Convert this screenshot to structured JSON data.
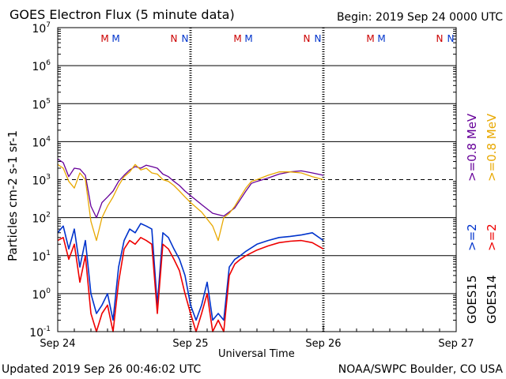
{
  "header": {
    "title": "GOES Electron Flux (5 minute data)",
    "begin": "Begin: 2019 Sep 24 0000 UTC"
  },
  "footer": {
    "updated": "Updated 2019 Sep 26 00:46:02 UTC",
    "credit": "NOAA/SWPC Boulder, CO USA"
  },
  "markers": [
    "M",
    "M",
    "N",
    "N"
  ],
  "right_labels": {
    "g15_low": ">=0.8  MeV",
    "g14_low": ">=0.8  MeV",
    "g15_high": ">=2",
    "g14_high": ">=2",
    "goes15": "GOES15",
    "goes14": "GOES14"
  },
  "colors": {
    "goes15_low": "#660099",
    "goes14_low": "#e8a800",
    "goes15_high": "#0033cc",
    "goes14_high": "#ee0000",
    "marker_m": "#cc0000",
    "marker_n": "#cc0000",
    "marker_m2": "#0033cc",
    "marker_n2": "#0033cc"
  },
  "chart_data": {
    "type": "line",
    "title": "GOES Electron Flux (5 minute data)",
    "xlabel": "Universal Time",
    "ylabel": "Particles cm-2 s-1 sr-1",
    "y_scale": "log",
    "ylim": [
      0.1,
      10000000
    ],
    "x_unit": "hours since 2019 Sep 24 0000 UTC",
    "xlim": [
      0,
      72
    ],
    "x_ticks": [
      {
        "x": 0,
        "label": "Sep 24"
      },
      {
        "x": 24,
        "label": "Sep 25"
      },
      {
        "x": 48,
        "label": "Sep 26"
      },
      {
        "x": 72,
        "label": "Sep 27"
      }
    ],
    "y_ticks": [
      {
        "y": 10000000,
        "base": "10",
        "exp": "7"
      },
      {
        "y": 1000000,
        "base": "10",
        "exp": "6"
      },
      {
        "y": 100000,
        "base": "10",
        "exp": "5"
      },
      {
        "y": 10000,
        "base": "10",
        "exp": "4"
      },
      {
        "y": 1000,
        "base": "10",
        "exp": "3"
      },
      {
        "y": 100,
        "base": "10",
        "exp": "2"
      },
      {
        "y": 10,
        "base": "10",
        "exp": "1"
      },
      {
        "y": 1,
        "base": "10",
        "exp": "0"
      },
      {
        "y": 0.1,
        "base": "10",
        "exp": "-1"
      }
    ],
    "grid": true,
    "threshold": 1000,
    "series": [
      {
        "name": "GOES15 >=0.8 MeV",
        "color": "#660099",
        "x": [
          0,
          1,
          2,
          3,
          4,
          5,
          6,
          7,
          8,
          9,
          10,
          11,
          12,
          13,
          14,
          15,
          16,
          17,
          18,
          19,
          20,
          21,
          22,
          23,
          24,
          26,
          28,
          30,
          32,
          33,
          34,
          35,
          36,
          38,
          40,
          42,
          44,
          46,
          48
        ],
        "y": [
          3500,
          2800,
          1200,
          2000,
          1900,
          1300,
          200,
          100,
          250,
          350,
          500,
          900,
          1300,
          1800,
          2200,
          2000,
          2400,
          2200,
          2000,
          1400,
          1200,
          900,
          700,
          500,
          380,
          220,
          130,
          110,
          180,
          300,
          500,
          800,
          900,
          1100,
          1400,
          1600,
          1700,
          1500,
          1300
        ]
      },
      {
        "name": "GOES14 >=0.8 MeV",
        "color": "#e8a800",
        "x": [
          0,
          1,
          2,
          3,
          4,
          5,
          6,
          7,
          8,
          9,
          10,
          11,
          12,
          13,
          14,
          15,
          16,
          17,
          18,
          19,
          20,
          21,
          22,
          23,
          24,
          26,
          28,
          29,
          30,
          31,
          32,
          33,
          34,
          35,
          36,
          38,
          40,
          42,
          44,
          46,
          48
        ],
        "y": [
          2500,
          2000,
          900,
          600,
          1500,
          1000,
          80,
          25,
          100,
          200,
          350,
          700,
          1200,
          1600,
          2500,
          1800,
          2000,
          1500,
          1400,
          1000,
          900,
          700,
          500,
          350,
          250,
          140,
          60,
          25,
          100,
          130,
          200,
          350,
          600,
          900,
          1000,
          1300,
          1600,
          1600,
          1500,
          1200,
          1000
        ]
      },
      {
        "name": "GOES15 >=2 MeV",
        "color": "#0033cc",
        "x": [
          0,
          1,
          2,
          3,
          4,
          5,
          6,
          7,
          8,
          9,
          10,
          11,
          12,
          13,
          14,
          15,
          16,
          17,
          18,
          19,
          20,
          21,
          22,
          23,
          24,
          25,
          26,
          27,
          28,
          29,
          30,
          31,
          32,
          33,
          34,
          36,
          38,
          40,
          42,
          44,
          46,
          48
        ],
        "y": [
          40,
          60,
          15,
          50,
          5,
          25,
          1,
          0.3,
          0.5,
          1,
          0.2,
          5,
          25,
          50,
          40,
          70,
          60,
          50,
          0.5,
          40,
          30,
          15,
          8,
          3,
          0.5,
          0.2,
          0.5,
          2,
          0.2,
          0.3,
          0.2,
          5,
          8,
          10,
          13,
          20,
          25,
          30,
          32,
          35,
          40,
          25
        ]
      },
      {
        "name": "GOES14 >=2 MeV",
        "color": "#ee0000",
        "x": [
          0,
          1,
          2,
          3,
          4,
          5,
          6,
          7,
          8,
          9,
          10,
          11,
          12,
          13,
          14,
          15,
          16,
          17,
          18,
          19,
          20,
          21,
          22,
          23,
          24,
          25,
          26,
          27,
          28,
          29,
          30,
          31,
          32,
          33,
          34,
          36,
          38,
          40,
          42,
          44,
          46,
          48
        ],
        "y": [
          25,
          30,
          8,
          20,
          2,
          10,
          0.3,
          0.1,
          0.3,
          0.5,
          0.1,
          2,
          15,
          25,
          20,
          30,
          25,
          20,
          0.3,
          20,
          15,
          8,
          4,
          1,
          0.3,
          0.1,
          0.3,
          1,
          0.1,
          0.2,
          0.1,
          3,
          6,
          8,
          10,
          14,
          18,
          22,
          24,
          25,
          22,
          15
        ]
      }
    ]
  }
}
